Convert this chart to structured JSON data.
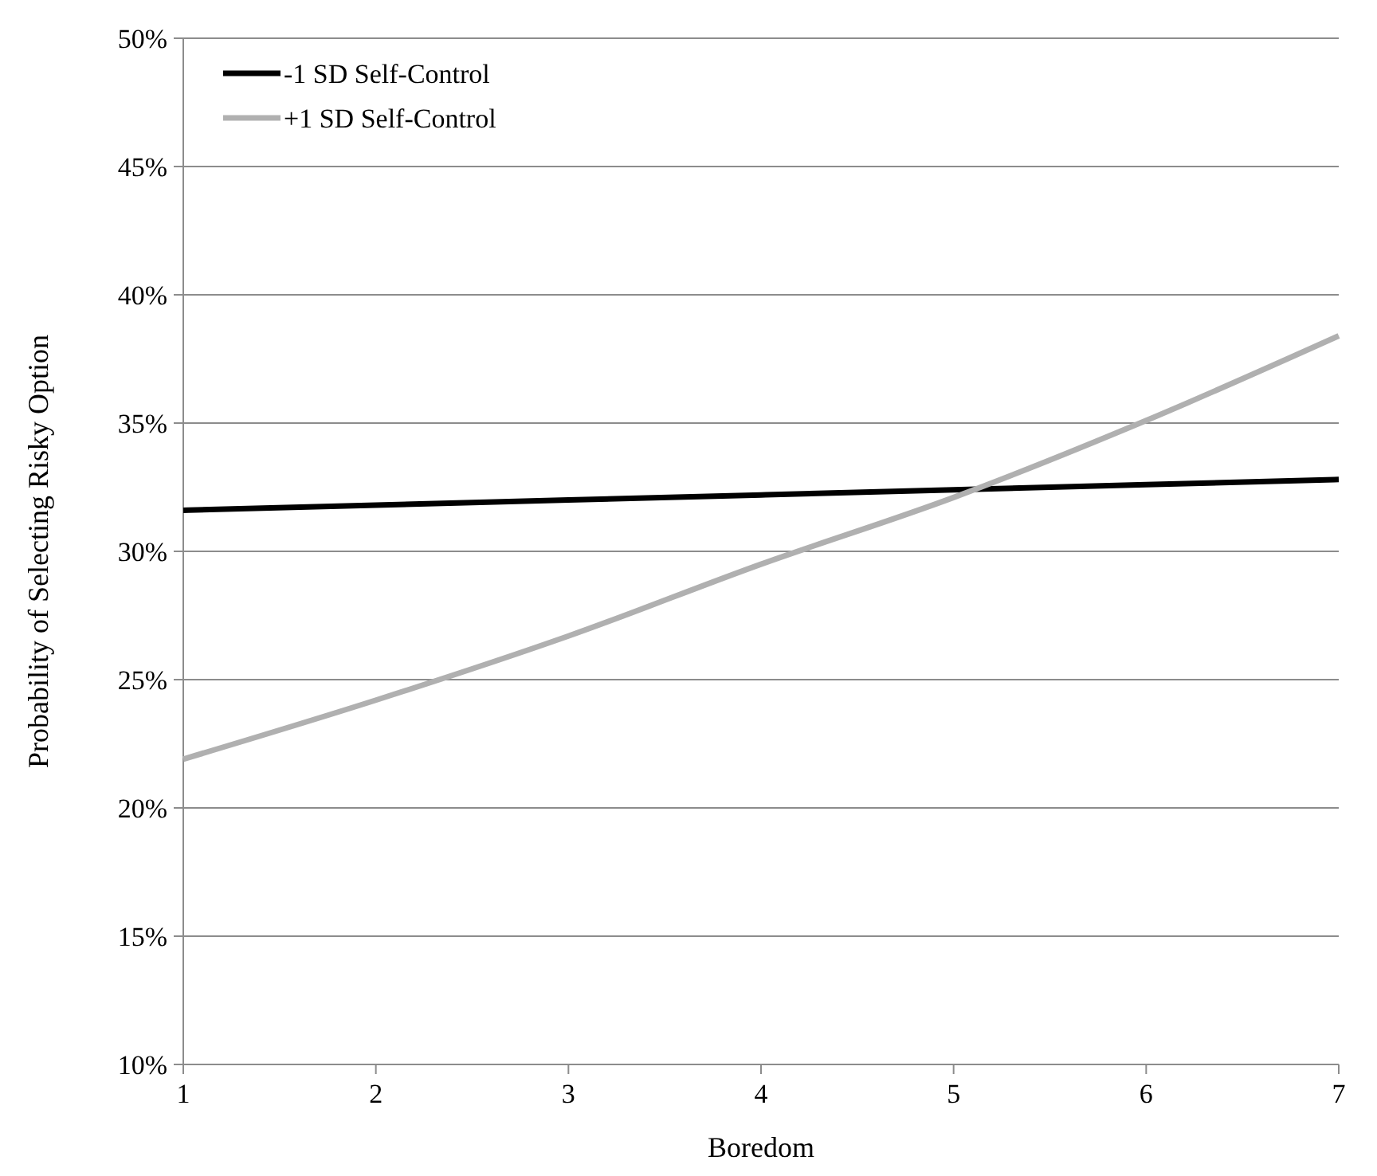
{
  "chart_data": {
    "type": "line",
    "xlabel": "Boredom",
    "ylabel": "Probability of Selecting Risky Option",
    "xlim": [
      1,
      7
    ],
    "xticks": [
      1,
      2,
      3,
      4,
      5,
      6,
      7
    ],
    "ylim": [
      10,
      50
    ],
    "yticks": [
      {
        "value": 10,
        "label": "10%"
      },
      {
        "value": 15,
        "label": "15%"
      },
      {
        "value": 20,
        "label": "20%"
      },
      {
        "value": 25,
        "label": "25%"
      },
      {
        "value": 30,
        "label": "30%"
      },
      {
        "value": 35,
        "label": "35%"
      },
      {
        "value": 40,
        "label": "40%"
      },
      {
        "value": 45,
        "label": "45%"
      },
      {
        "value": 50,
        "label": "50%"
      }
    ],
    "grid": "y",
    "legend": "top left",
    "marker": "none",
    "line_style": "solid",
    "series": [
      {
        "name": "-1 SD Self-Control",
        "color": "#000000",
        "x": [
          1,
          2,
          3,
          4,
          5,
          6,
          7
        ],
        "values": [
          31.6,
          31.8,
          32.0,
          32.2,
          32.4,
          32.6,
          32.8
        ]
      },
      {
        "name": "+1 SD Self-Control",
        "color": "#b0b0b0",
        "x": [
          1,
          2,
          3,
          4,
          5,
          6,
          7
        ],
        "values": [
          21.9,
          24.2,
          26.7,
          29.5,
          32.1,
          35.1,
          38.4
        ]
      }
    ]
  }
}
